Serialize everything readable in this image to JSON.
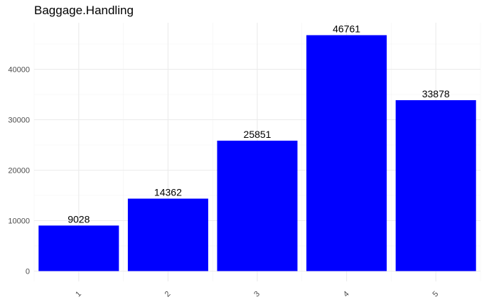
{
  "chart_data": {
    "type": "bar",
    "title": "Baggage.Handling",
    "xlabel": "",
    "ylabel": "",
    "categories": [
      "1",
      "2",
      "3",
      "4",
      "5"
    ],
    "values": [
      9028,
      14362,
      25851,
      46761,
      33878
    ],
    "data_labels": [
      "9028",
      "14362",
      "25851",
      "46761",
      "33878"
    ],
    "yticks": [
      0,
      10000,
      20000,
      30000,
      40000
    ],
    "ytick_labels": [
      "0",
      "10000",
      "20000",
      "30000",
      "40000"
    ],
    "ylim": [
      0,
      49100
    ],
    "bar_color": "#0000ff",
    "grid": true,
    "legend": "none"
  }
}
